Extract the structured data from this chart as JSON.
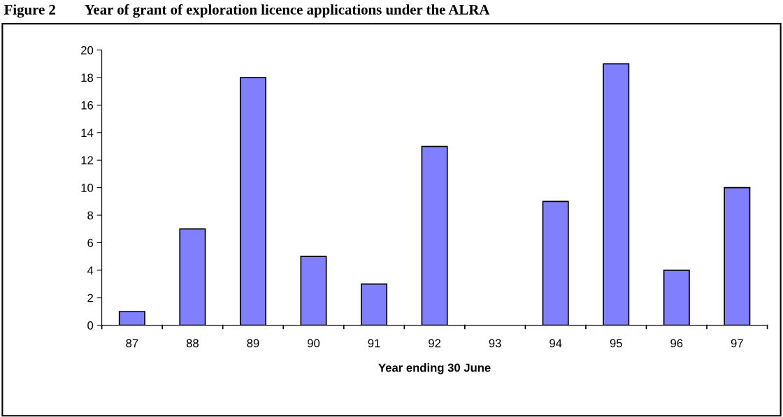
{
  "chart_data": {
    "type": "bar",
    "title": "Figure 2        Year of grant of exploration licence applications under the ALRA",
    "xlabel": "Year ending 30 June",
    "categories": [
      "87",
      "88",
      "89",
      "90",
      "91",
      "92",
      "93",
      "94",
      "95",
      "96",
      "97"
    ],
    "values": [
      1,
      7,
      18,
      5,
      3,
      13,
      0,
      9,
      19,
      4,
      10
    ],
    "color": "#8080ff",
    "ylim": [
      0,
      20
    ],
    "yticks": [
      0,
      2,
      4,
      6,
      8,
      10,
      12,
      14,
      16,
      18,
      20
    ],
    "grid": false,
    "legend": false
  }
}
